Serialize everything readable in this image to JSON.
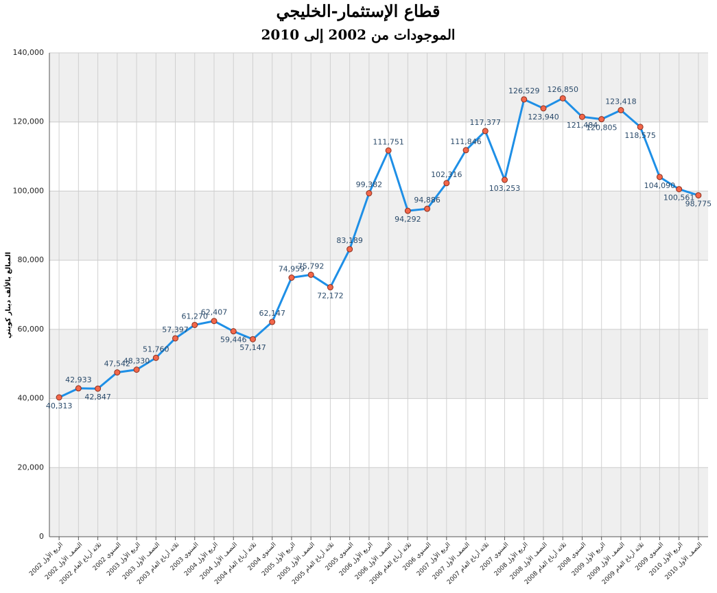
{
  "chart_data": {
    "type": "line",
    "title": "قطاع الإستثمار-الخليجي",
    "subtitle": "الموجودات من 2002 إلى 2010",
    "y_label": "المبالغ بالألف دينار كويتي",
    "categories": [
      "الربع الأول 2002",
      "النصف الأول 2002",
      "ثلاثة أرباع العام 2002",
      "السنوي 2002",
      "الربع الأول 2003",
      "النصف الأول 2003",
      "ثلاثة أرباع العام 2003",
      "السنوي 2003",
      "الربع الأول 2004",
      "النصف الأول 2004",
      "ثلاثة أرباع العام 2004",
      "السنوي 2004",
      "الربع الأول 2005",
      "النصف الأول 2005",
      "ثلاثة أرباع العام 2005",
      "السنوي 2005",
      "الربع الأول 2006",
      "النصف الأول 2006",
      "ثلاثة أرباع العام 2006",
      "السنوي 2006",
      "الربع الأول 2007",
      "النصف الأول 2007",
      "ثلاثة أرباع العام 2007",
      "السنوي 2007",
      "الربع الأول 2008",
      "النصف الأول 2008",
      "ثلاثة أرباع العام 2008",
      "السنوي 2008",
      "الربع الأول 2009",
      "النصف الأول 2009",
      "ثلاثة أرباع العام 2009",
      "السنوي 2009",
      "الربع الأول 2010",
      "النصف الأول 2010"
    ],
    "series": [
      {
        "color": "#1e8fe6",
        "marker_color": "#f2674a",
        "values": [
          40313,
          42933,
          42847,
          47542,
          48330,
          51760,
          57397,
          61270,
          62407,
          59446,
          57147,
          62147,
          74959,
          75792,
          72172,
          83189,
          99382,
          111751,
          94292,
          94886,
          102316,
          111846,
          117377,
          103253,
          126529,
          123940,
          126850,
          121484,
          120805,
          123418,
          118575,
          104090,
          100561,
          98775
        ],
        "value_labels": [
          "40,313",
          "42,933",
          "42,847",
          "47,542",
          "48,330",
          "51,760",
          "57,397",
          "61,270",
          "62,407",
          "59,446",
          "57,147",
          "62,147",
          "74,959",
          "75,792",
          "72,172",
          "83,189",
          "99,382",
          "111,751",
          "94,292",
          "94,886",
          "102,316",
          "111,846",
          "117,377",
          "103,253",
          "126,529",
          "123,940",
          "126,850",
          "121,484",
          "120,805",
          "123,418",
          "118,575",
          "104,090",
          "100,561",
          "98,775"
        ]
      }
    ],
    "ylim": [
      0,
      140000
    ],
    "yticks": [
      {
        "value": 0,
        "label": "0"
      },
      {
        "value": 20000,
        "label": "20,000"
      },
      {
        "value": 40000,
        "label": "40,000"
      },
      {
        "value": 60000,
        "label": "60,000"
      },
      {
        "value": 80000,
        "label": "80,000"
      },
      {
        "value": 100000,
        "label": "100,000"
      },
      {
        "value": 120000,
        "label": "120,000"
      },
      {
        "value": 140000,
        "label": "140,000"
      }
    ],
    "grid": true
  }
}
